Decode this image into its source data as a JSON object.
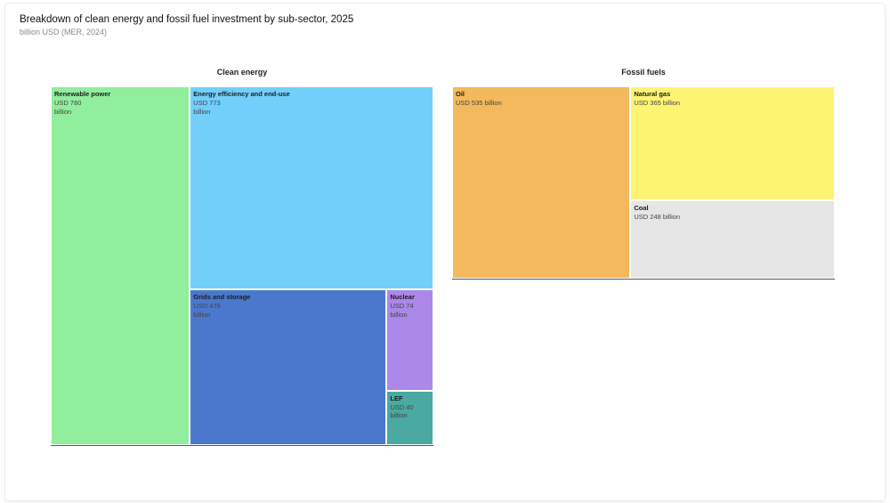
{
  "header": {
    "title": "Breakdown of clean energy and fossil fuel investment by sub-sector, 2025",
    "subtitle": "billion USD (MER, 2024)"
  },
  "chart_data": {
    "type": "treemap",
    "title": "Breakdown of clean energy and fossil fuel investment by sub-sector, 2025",
    "unit": "billion USD (MER, 2024)",
    "groups": [
      {
        "name": "Clean energy",
        "items": [
          {
            "name": "Renewable power",
            "value": 780,
            "value_label": "USD 780 billion",
            "color": "#90ee9c"
          },
          {
            "name": "Energy efficiency and end-use",
            "value": 773,
            "value_label": "USD 773 billion",
            "color": "#72cffb"
          },
          {
            "name": "Grids and storage",
            "value": 479,
            "value_label": "USD 479 billion",
            "color": "#4a78cc"
          },
          {
            "name": "Nuclear",
            "value": 74,
            "value_label": "USD 74 billion",
            "color": "#ab88e9"
          },
          {
            "name": "LEF",
            "value": 40,
            "value_label": "USD 40 billion",
            "color": "#4aa9a3"
          }
        ]
      },
      {
        "name": "Fossil fuels",
        "items": [
          {
            "name": "Oil",
            "value": 535,
            "value_label": "USD 535 billion",
            "color": "#f3b95c"
          },
          {
            "name": "Natural gas",
            "value": 365,
            "value_label": "USD 365 billion",
            "color": "#fdf474"
          },
          {
            "name": "Coal",
            "value": 248,
            "value_label": "USD 248 billion",
            "color": "#e6e6e6"
          }
        ]
      }
    ]
  }
}
